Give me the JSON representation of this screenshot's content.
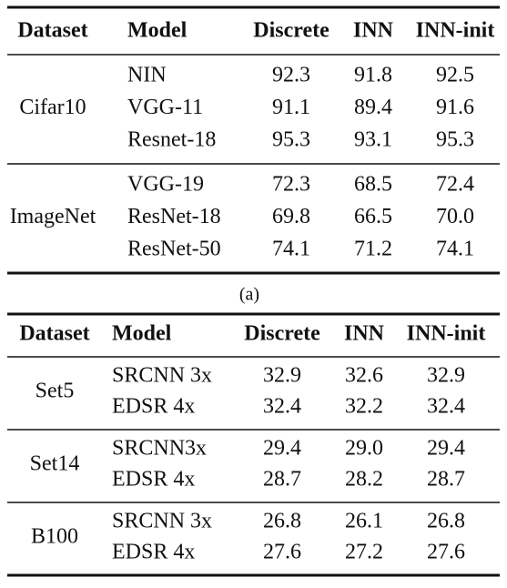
{
  "tables": [
    {
      "header": [
        "Dataset",
        "Model",
        "Discrete",
        "INN",
        "INN-init"
      ],
      "groups": [
        {
          "dataset": "Cifar10",
          "rows": [
            [
              "NIN",
              "92.3",
              "91.8",
              "92.5"
            ],
            [
              "VGG-11",
              "91.1",
              "89.4",
              "91.6"
            ],
            [
              "Resnet-18",
              "95.3",
              "93.1",
              "95.3"
            ]
          ]
        },
        {
          "dataset": "ImageNet",
          "rows": [
            [
              "VGG-19",
              "72.3",
              "68.5",
              "72.4"
            ],
            [
              "ResNet-18",
              "69.8",
              "66.5",
              "70.0"
            ],
            [
              "ResNet-50",
              "74.1",
              "71.2",
              "74.1"
            ]
          ]
        }
      ],
      "caption": "(a)"
    },
    {
      "header": [
        "Dataset",
        "Model",
        "Discrete",
        "INN",
        "INN-init"
      ],
      "groups": [
        {
          "dataset": "Set5",
          "rows": [
            [
              "SRCNN 3x",
              "32.9",
              "32.6",
              "32.9"
            ],
            [
              "EDSR 4x",
              "32.4",
              "32.2",
              "32.4"
            ]
          ]
        },
        {
          "dataset": "Set14",
          "rows": [
            [
              "SRCNN3x",
              "29.4",
              "29.0",
              "29.4"
            ],
            [
              "EDSR 4x",
              "28.7",
              "28.2",
              "28.7"
            ]
          ]
        },
        {
          "dataset": "B100",
          "rows": [
            [
              "SRCNN 3x",
              "26.8",
              "26.1",
              "26.8"
            ],
            [
              "EDSR 4x",
              "27.6",
              "27.2",
              "27.6"
            ]
          ]
        }
      ]
    }
  ]
}
